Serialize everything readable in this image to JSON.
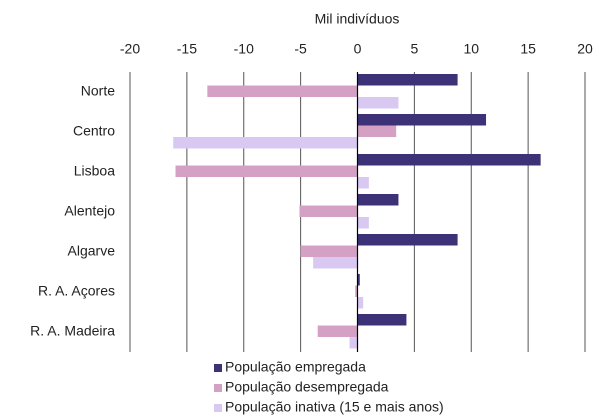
{
  "chart_data": {
    "type": "hbar",
    "x_label": "Mil indivíduos",
    "categories": [
      "Norte",
      "Centro",
      "Lisboa",
      "Alentejo",
      "Algarve",
      "R. A. Açores",
      "R. A. Madeira"
    ],
    "series": [
      {
        "name": "População empregada",
        "color": "#3d3278",
        "values": [
          8.8,
          11.3,
          16.1,
          3.6,
          8.8,
          0.2,
          4.3
        ]
      },
      {
        "name": "População desempregada",
        "color": "#d4a0c4",
        "values": [
          -13.2,
          3.4,
          -16.0,
          -5.1,
          -5.0,
          -0.2,
          -3.5
        ]
      },
      {
        "name": "População inativa (15 e mais anos)",
        "color": "#d9c8f2",
        "values": [
          3.6,
          -16.2,
          1.0,
          1.0,
          -3.9,
          0.5,
          -0.7
        ]
      }
    ],
    "xlim": [
      -20,
      20
    ],
    "xticks": [
      -20,
      -15,
      -10,
      -5,
      0,
      5,
      10,
      15,
      20
    ],
    "grid": true
  }
}
